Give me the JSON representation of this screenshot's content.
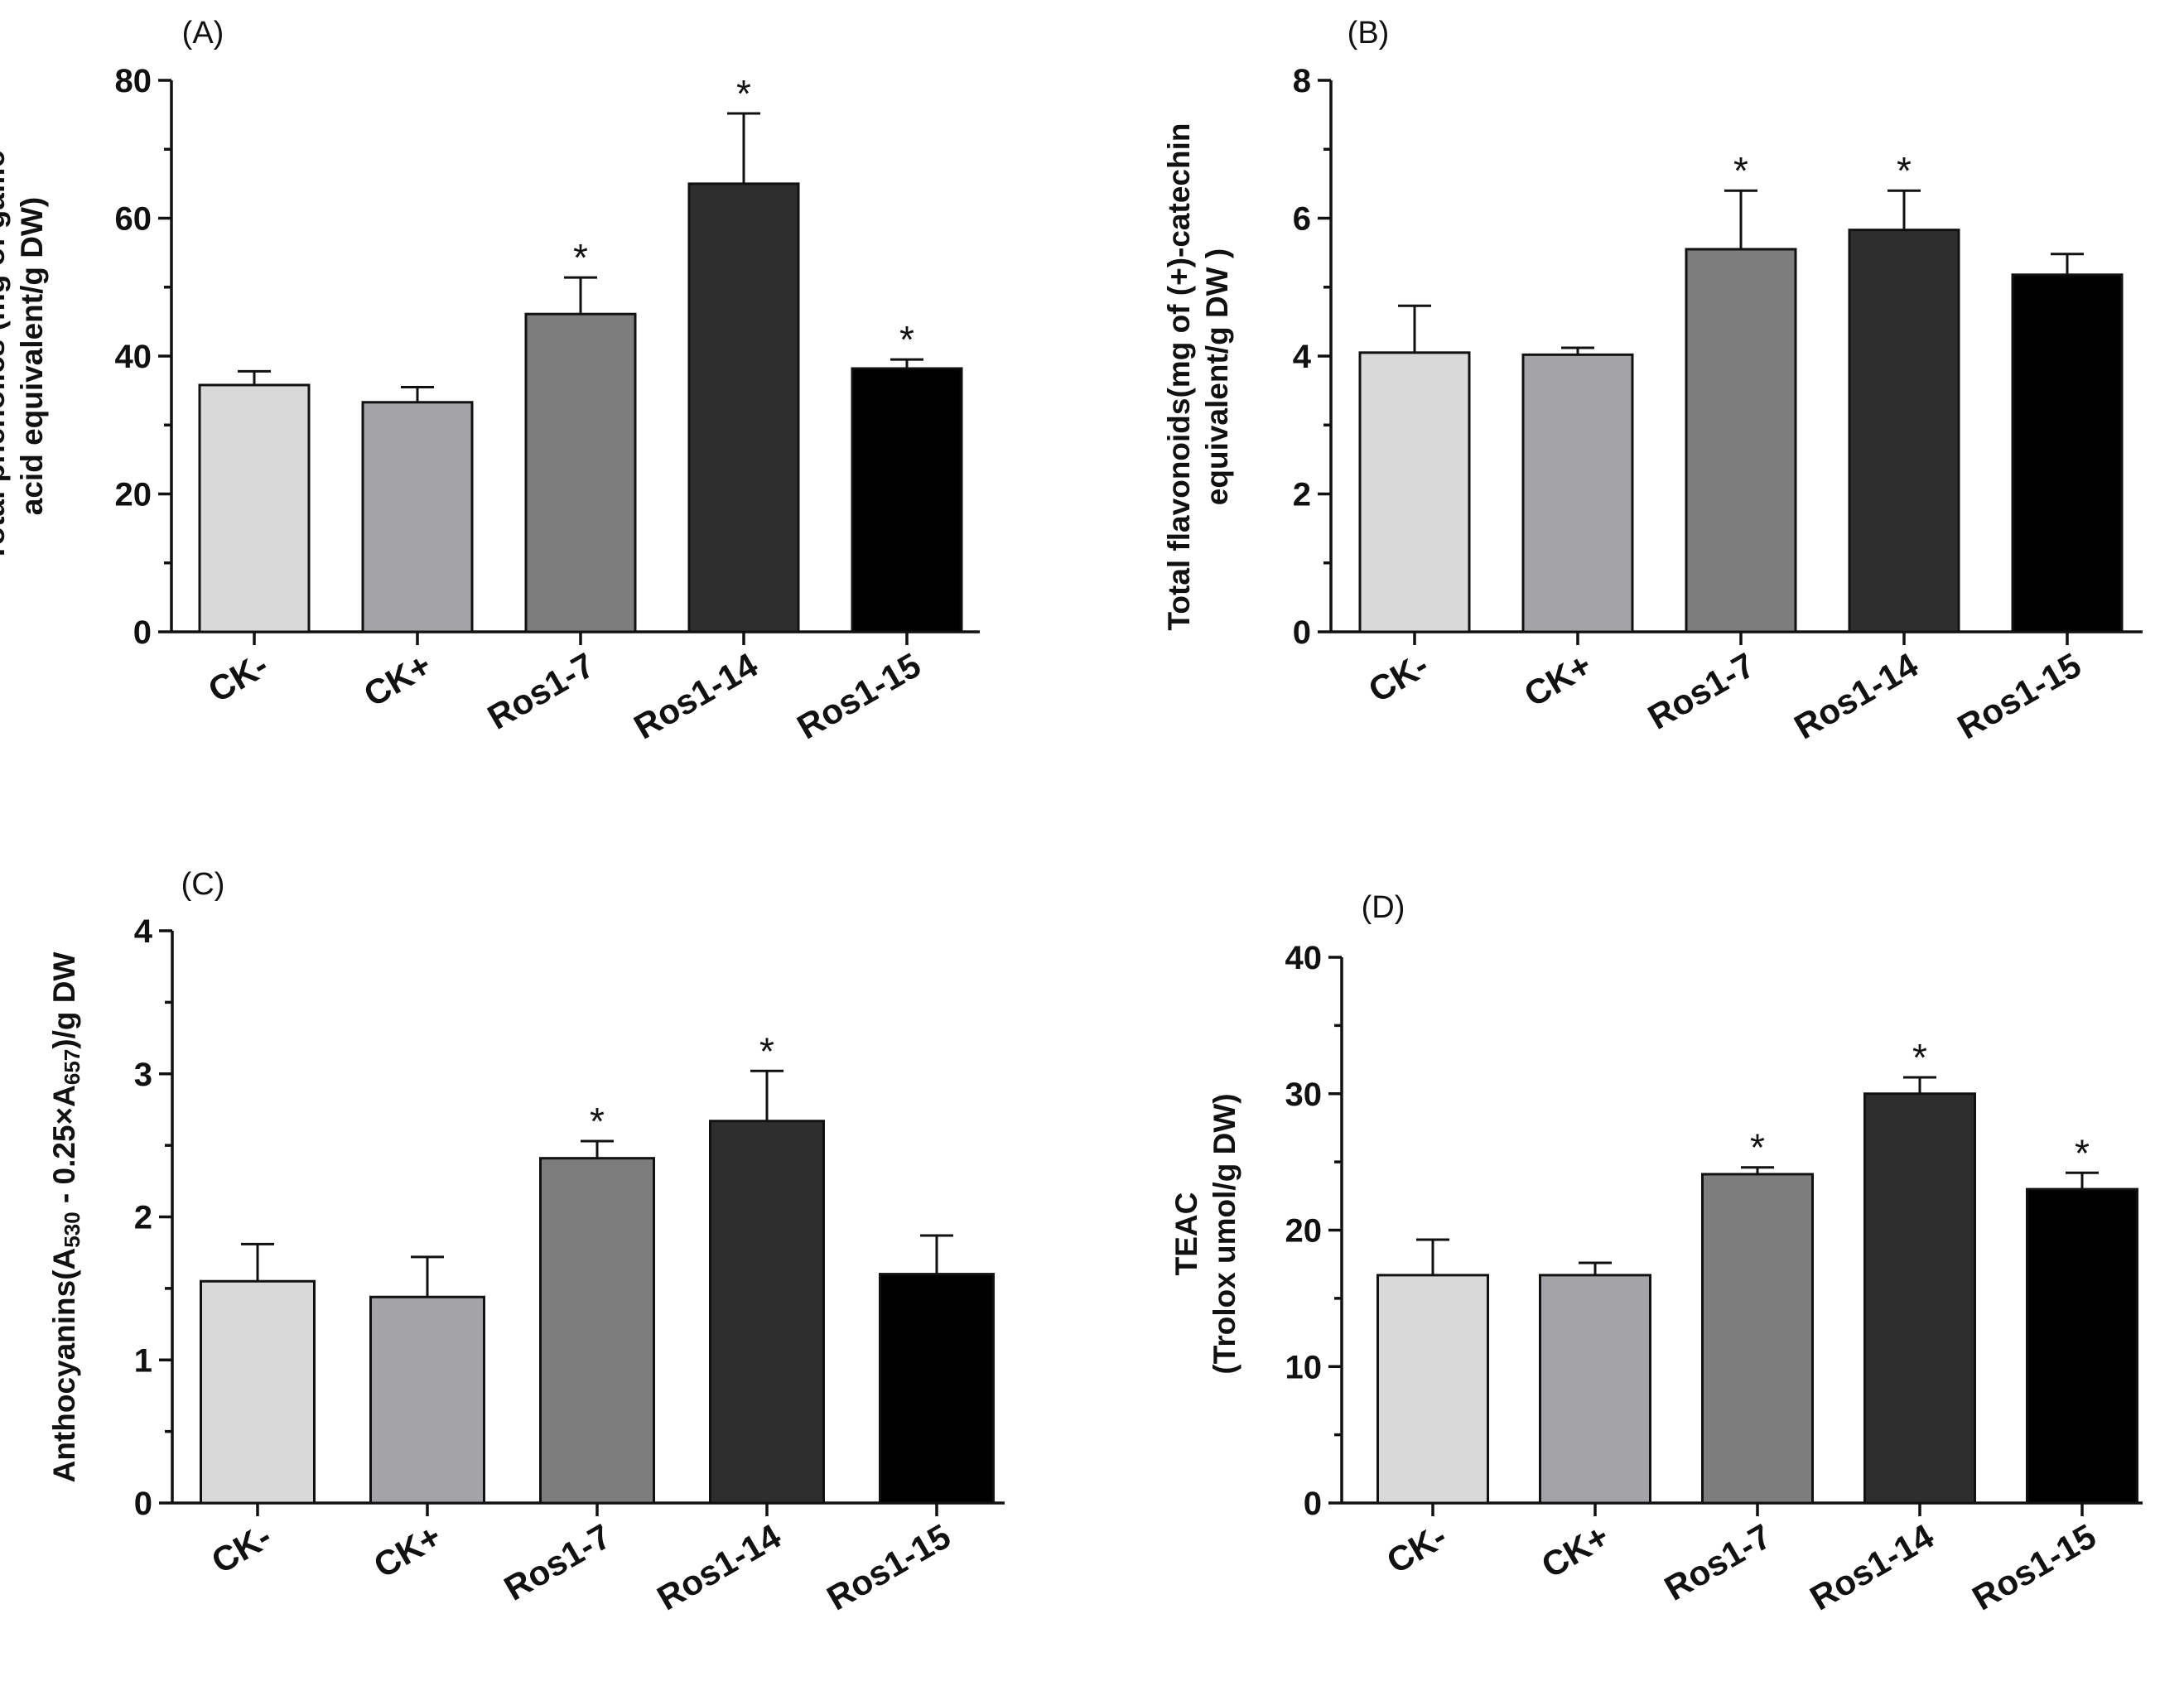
{
  "chart_data": [
    {
      "type": "bar",
      "panel_label": "(A)",
      "categories": [
        "CK-",
        "CK+",
        "Ros1-7",
        "Ros1-14",
        "Ros1-15"
      ],
      "values": [
        35.8,
        33.3,
        46.1,
        65.0,
        38.2
      ],
      "errors": [
        2.0,
        2.2,
        5.3,
        10.2,
        1.3
      ],
      "significant": [
        "",
        "",
        "*",
        "*",
        "*"
      ],
      "ylabel_lines": [
        "Total phenolics (mg of gallic",
        "acid equivalent/g DW)"
      ],
      "ylim": [
        0,
        80
      ],
      "yticks": [
        "0",
        "20",
        "40",
        "60",
        "80"
      ],
      "colors": [
        "#d9d9d9",
        "#a4a4a8",
        "#7d7d7d",
        "#2e2e2e",
        "#000000"
      ]
    },
    {
      "type": "bar",
      "panel_label": "(B)",
      "categories": [
        "CK-",
        "CK+",
        "Ros1-7",
        "Ros1-14",
        "Ros1-15"
      ],
      "values": [
        4.05,
        4.02,
        5.55,
        5.83,
        5.18
      ],
      "errors": [
        0.68,
        0.1,
        0.85,
        0.57,
        0.3
      ],
      "significant": [
        "",
        "",
        "*",
        "*",
        ""
      ],
      "ylabel_lines": [
        "Total flavonoids(mg of (+)-catechin",
        "equivalent/g DW )"
      ],
      "ylim": [
        0,
        8
      ],
      "yticks": [
        "0",
        "2",
        "4",
        "6",
        "8"
      ],
      "colors": [
        "#d9d9d9",
        "#a4a4a8",
        "#7d7d7d",
        "#2e2e2e",
        "#000000"
      ]
    },
    {
      "type": "bar",
      "panel_label": "(C)",
      "categories": [
        "CK-",
        "CK+",
        "Ros1-7",
        "Ros1-14",
        "Ros1-15"
      ],
      "values": [
        1.55,
        1.44,
        2.41,
        2.67,
        1.6
      ],
      "errors": [
        0.26,
        0.28,
        0.12,
        0.35,
        0.27
      ],
      "significant": [
        "",
        "",
        "*",
        "*",
        ""
      ],
      "ylabel_parts": [
        "Anthocyanins(A",
        "530",
        " - 0.25×A",
        "657",
        ")/g DW"
      ],
      "ylim": [
        0,
        4
      ],
      "yticks": [
        "0",
        "1",
        "2",
        "3",
        "4"
      ],
      "colors": [
        "#d9d9d9",
        "#a4a4a8",
        "#7d7d7d",
        "#2e2e2e",
        "#000000"
      ]
    },
    {
      "type": "bar",
      "panel_label": "(D)",
      "categories": [
        "CK-",
        "CK+",
        "Ros1-7",
        "Ros1-14",
        "Ros1-15"
      ],
      "values": [
        16.7,
        16.7,
        24.1,
        30.0,
        23.0
      ],
      "errors": [
        2.6,
        0.9,
        0.5,
        1.2,
        1.2
      ],
      "significant": [
        "",
        "",
        "*",
        "*",
        "*"
      ],
      "ylabel_lines": [
        "TEAC",
        "(Trolox umol/g DW)"
      ],
      "ylim": [
        0,
        40
      ],
      "yticks": [
        "0",
        "10",
        "20",
        "30",
        "40"
      ],
      "colors": [
        "#d9d9d9",
        "#a4a4a8",
        "#7d7d7d",
        "#2e2e2e",
        "#000000"
      ]
    }
  ]
}
